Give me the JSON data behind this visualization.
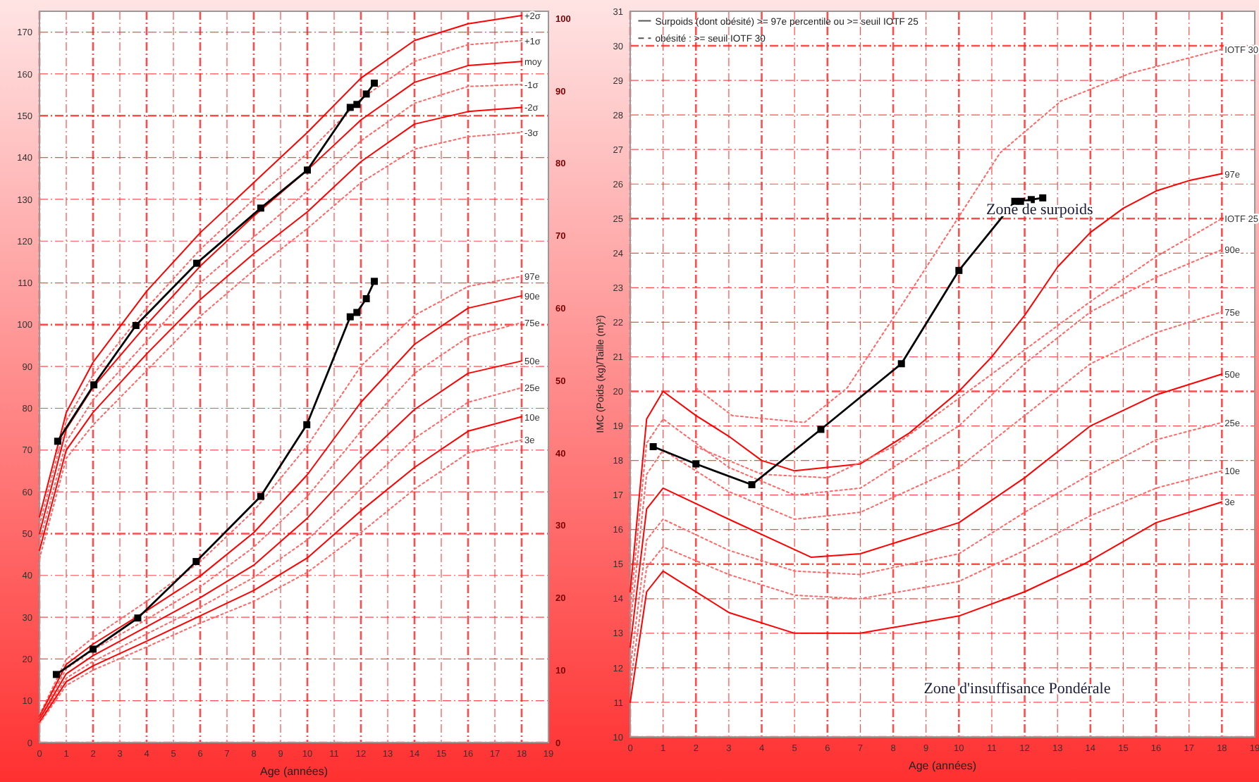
{
  "chart_data": [
    {
      "type": "line",
      "xlabel": "Age (années)",
      "xlim": [
        0,
        19
      ],
      "xticks": [
        0,
        1,
        2,
        3,
        4,
        5,
        6,
        7,
        8,
        9,
        10,
        11,
        12,
        13,
        14,
        15,
        16,
        17,
        18,
        19
      ],
      "ylim": [
        0,
        175
      ],
      "yticks": [
        0,
        10,
        20,
        30,
        40,
        50,
        60,
        70,
        80,
        90,
        100,
        110,
        120,
        130,
        140,
        150,
        160,
        170
      ],
      "y2lim": [
        0,
        101
      ],
      "y2ticks": [
        0,
        10,
        20,
        30,
        40,
        50,
        60,
        70,
        80,
        90,
        100
      ],
      "grid": true,
      "series": [
        {
          "name": "+2σ",
          "color": "#ff0000",
          "line_style": "solid",
          "x": [
            0,
            1,
            2,
            4,
            6,
            8,
            10,
            12,
            14,
            16,
            18
          ],
          "values": [
            54,
            79,
            91,
            108,
            122,
            134,
            146,
            159,
            168,
            172,
            174
          ]
        },
        {
          "name": "+1σ",
          "color": "#ff6666",
          "line_style": "dotted",
          "x": [
            0,
            1,
            2,
            4,
            6,
            8,
            10,
            12,
            14,
            16,
            18
          ],
          "values": [
            52,
            77,
            88,
            104,
            118,
            130,
            141,
            154,
            163,
            167,
            168
          ]
        },
        {
          "name": "moy",
          "color": "#ff0000",
          "line_style": "solid",
          "x": [
            0,
            1,
            2,
            4,
            6,
            8,
            10,
            12,
            14,
            16,
            18
          ],
          "values": [
            50,
            75,
            85,
            100,
            114,
            126,
            137,
            149,
            158,
            162,
            163
          ]
        },
        {
          "name": "-1σ",
          "color": "#ff6666",
          "line_style": "dotted",
          "x": [
            0,
            1,
            2,
            4,
            6,
            8,
            10,
            12,
            14,
            16,
            18
          ],
          "values": [
            48,
            72,
            82,
            96,
            110,
            121,
            132,
            144,
            153,
            157,
            157.5
          ]
        },
        {
          "name": "-2σ",
          "color": "#ff0000",
          "line_style": "solid",
          "x": [
            0,
            1,
            2,
            4,
            6,
            8,
            10,
            12,
            14,
            16,
            18
          ],
          "values": [
            46,
            70,
            79,
            93,
            106,
            117,
            127,
            139,
            148,
            151,
            152
          ]
        },
        {
          "name": "-3σ",
          "color": "#ff6666",
          "line_style": "dotted",
          "x": [
            0,
            1,
            2,
            4,
            6,
            8,
            10,
            12,
            14,
            16,
            18
          ],
          "values": [
            44,
            68,
            76,
            89,
            102,
            113,
            123,
            134,
            142,
            145,
            146
          ]
        },
        {
          "color": "#000000",
          "line_style": "solid",
          "marker": "square",
          "x": [
            0.68,
            2.03,
            3.6,
            5.87,
            8.26,
            10,
            11.6,
            11.85,
            12.2,
            12.5
          ],
          "values": [
            72.1,
            85.6,
            99.8,
            114.7,
            127.9,
            137,
            152,
            152.7,
            155.2,
            157.8
          ]
        },
        {
          "name": "97e",
          "axis": "y2",
          "color": "#ff6666",
          "line_style": "dotted",
          "x": [
            0,
            1,
            2,
            4,
            6,
            8,
            10,
            12,
            14,
            16,
            18
          ],
          "values": [
            3.8,
            11.5,
            14.5,
            19.5,
            25,
            32,
            41,
            52,
            59,
            63,
            64.4
          ]
        },
        {
          "name": "90e",
          "axis": "y2",
          "color": "#ff0000",
          "line_style": "solid",
          "x": [
            0,
            1,
            2,
            4,
            6,
            8,
            10,
            12,
            14,
            16,
            18
          ],
          "values": [
            3.6,
            10.8,
            13.6,
            18.2,
            23,
            29,
            37,
            47,
            55,
            60,
            61.7
          ]
        },
        {
          "name": "75e",
          "axis": "y2",
          "color": "#ff6666",
          "line_style": "dotted",
          "x": [
            0,
            1,
            2,
            4,
            6,
            8,
            10,
            12,
            14,
            16,
            18
          ],
          "values": [
            3.4,
            10.2,
            12.8,
            17,
            21.5,
            27,
            34,
            43,
            51,
            56,
            58
          ]
        },
        {
          "name": "50e",
          "axis": "y2",
          "color": "#ff0000",
          "line_style": "solid",
          "x": [
            0,
            1,
            2,
            4,
            6,
            8,
            10,
            12,
            14,
            16,
            18
          ],
          "values": [
            3.2,
            9.5,
            12,
            16,
            20,
            24.5,
            31,
            39,
            46,
            51,
            52.7
          ]
        },
        {
          "name": "25e",
          "axis": "y2",
          "color": "#ff6666",
          "line_style": "dotted",
          "x": [
            0,
            1,
            2,
            4,
            6,
            8,
            10,
            12,
            14,
            16,
            18
          ],
          "values": [
            3,
            8.9,
            11.2,
            15,
            18.7,
            22.8,
            28,
            35,
            42,
            47,
            49
          ]
        },
        {
          "name": "10e",
          "axis": "y2",
          "color": "#ff0000",
          "line_style": "solid",
          "x": [
            0,
            1,
            2,
            4,
            6,
            8,
            10,
            12,
            14,
            16,
            18
          ],
          "values": [
            2.8,
            8.4,
            10.6,
            14,
            17.5,
            21,
            25.5,
            32,
            38,
            43,
            45
          ]
        },
        {
          "name": "3e",
          "axis": "y2",
          "color": "#ff6666",
          "line_style": "dotted",
          "x": [
            0,
            1,
            2,
            4,
            6,
            8,
            10,
            12,
            14,
            16,
            18
          ],
          "values": [
            2.6,
            7.9,
            10,
            13.2,
            16.5,
            19.5,
            23.5,
            29,
            35,
            40,
            41.8
          ]
        },
        {
          "axis": "y2",
          "color": "#000000",
          "line_style": "solid",
          "marker": "square",
          "x": [
            0.63,
            2,
            3.67,
            5.85,
            8.26,
            9.98,
            11.6,
            11.85,
            12.2,
            12.5
          ],
          "values": [
            9.4,
            12.9,
            17.2,
            25,
            34,
            43.9,
            58.8,
            59.4,
            61.3,
            63.7
          ]
        }
      ]
    },
    {
      "type": "line",
      "xlabel": "Age (années)",
      "ylabel": "IMC (Poids (kg)/Taille (m)²)",
      "xlim": [
        0,
        19
      ],
      "xticks": [
        0,
        1,
        2,
        3,
        4,
        5,
        6,
        7,
        8,
        9,
        10,
        11,
        12,
        13,
        14,
        15,
        16,
        17,
        18,
        19
      ],
      "ylim": [
        10,
        31
      ],
      "yticks": [
        10,
        11,
        12,
        13,
        14,
        15,
        16,
        17,
        18,
        19,
        20,
        21,
        22,
        23,
        24,
        25,
        26,
        27,
        28,
        29,
        30,
        31
      ],
      "grid": true,
      "annotations": [
        "Surpoids (dont obésité) >= 97e percentile ou >= seuil IOTF 25",
        "obésité : >= seuil IOTF 30",
        "Zone de surpoids",
        "Zone d'insuffisance Pondérale"
      ],
      "series": [
        {
          "name": "IOTF 30",
          "color": "#ff6666",
          "line_style": "dotted",
          "x": [
            2,
            3.1,
            5.3,
            6.6,
            8.4,
            11.25,
            13.1,
            15.2,
            18
          ],
          "values": [
            20.1,
            19.3,
            19.1,
            20.1,
            22.7,
            26.9,
            28.4,
            29.2,
            29.9
          ]
        },
        {
          "name": "97e",
          "color": "#ff0000",
          "line_style": "solid",
          "x": [
            0,
            0.5,
            1,
            2,
            3,
            4,
            5,
            7,
            8.5,
            10,
            11,
            12,
            13,
            14,
            15,
            16,
            17,
            18
          ],
          "values": [
            14.2,
            19.2,
            20,
            19.3,
            18.7,
            18,
            17.7,
            17.9,
            18.8,
            20,
            21,
            22.2,
            23.6,
            24.6,
            25.3,
            25.8,
            26.1,
            26.3
          ]
        },
        {
          "name": "IOTF 25",
          "color": "#ff6666",
          "line_style": "dotted",
          "x": [
            2,
            4,
            6,
            8,
            10,
            12,
            14,
            16,
            18
          ],
          "values": [
            18.4,
            17.6,
            17.5,
            18.4,
            19.8,
            21.2,
            22.6,
            23.9,
            25
          ]
        },
        {
          "name": "90e",
          "color": "#ff6666",
          "line_style": "dotted",
          "x": [
            0,
            0.5,
            1,
            3,
            5,
            7,
            10,
            12,
            14,
            16,
            18
          ],
          "values": [
            13.7,
            18.5,
            19.2,
            17.8,
            17,
            17.2,
            19,
            20.8,
            22.3,
            23.3,
            24.1
          ]
        },
        {
          "name": "75e",
          "color": "#ff6666",
          "line_style": "dotted",
          "x": [
            0,
            0.5,
            1,
            3,
            5,
            7,
            10,
            12,
            14,
            16,
            18
          ],
          "values": [
            13.2,
            17.6,
            18.3,
            17.1,
            16.3,
            16.5,
            17.8,
            19.3,
            20.8,
            21.7,
            22.3
          ]
        },
        {
          "name": "50e",
          "color": "#ff0000",
          "line_style": "solid",
          "x": [
            0,
            0.5,
            1,
            3,
            5.5,
            7,
            10,
            12,
            14,
            16,
            18
          ],
          "values": [
            12.6,
            16.6,
            17.2,
            16.3,
            15.2,
            15.3,
            16.2,
            17.5,
            19,
            19.9,
            20.5
          ]
        },
        {
          "name": "25e",
          "color": "#ff6666",
          "line_style": "dotted",
          "x": [
            0,
            0.5,
            1,
            3,
            5,
            7,
            10,
            12,
            14,
            16,
            18
          ],
          "values": [
            12,
            15.7,
            16.3,
            15.4,
            14.8,
            14.7,
            15.3,
            16.5,
            17.6,
            18.6,
            19.1
          ]
        },
        {
          "name": "10e",
          "color": "#ff6666",
          "line_style": "dotted",
          "x": [
            0,
            0.5,
            1,
            3,
            5,
            7,
            10,
            12,
            14,
            16,
            18
          ],
          "values": [
            11.5,
            14.9,
            15.5,
            14.7,
            14.1,
            14,
            14.5,
            15.4,
            16.4,
            17.2,
            17.7
          ]
        },
        {
          "name": "3e",
          "color": "#ff0000",
          "line_style": "solid",
          "x": [
            0,
            0.5,
            1,
            3,
            5,
            7,
            10,
            12,
            13.8,
            16,
            18
          ],
          "values": [
            11,
            14.2,
            14.8,
            13.6,
            13,
            13,
            13.5,
            14.2,
            15,
            16.2,
            16.8
          ]
        },
        {
          "color": "#000000",
          "line_style": "solid",
          "marker": "square",
          "x": [
            0.7,
            2,
            3.7,
            5.8,
            8.25,
            10,
            11.7,
            11.9,
            12.2,
            12.55
          ],
          "values": [
            18.4,
            17.9,
            17.3,
            18.9,
            20.8,
            23.5,
            25.5,
            25.5,
            25.55,
            25.6
          ]
        }
      ]
    }
  ]
}
